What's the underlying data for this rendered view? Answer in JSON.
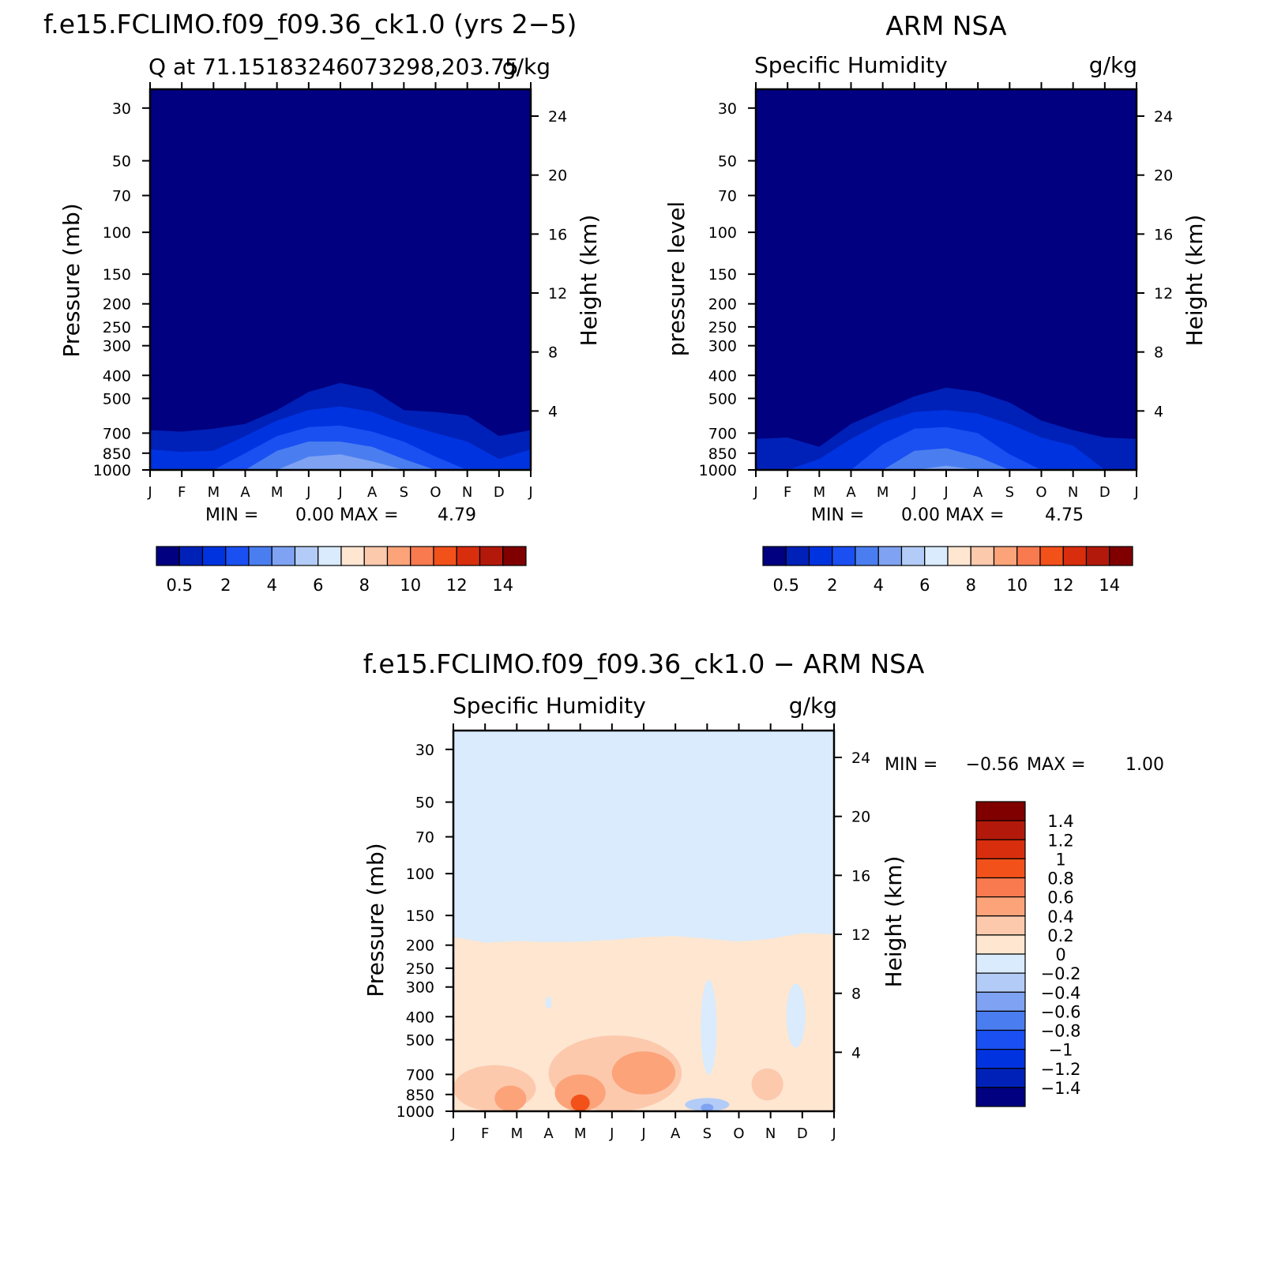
{
  "colors": {
    "abs_levels": [
      "#000080",
      "#0021b8",
      "#0033e0",
      "#1a4ff2",
      "#4a7ef0",
      "#7fa3f2",
      "#b3ccf7",
      "#d9ebfc",
      "#fee6d1",
      "#fcc9ad",
      "#fca37a",
      "#fa7a4f",
      "#f2511a",
      "#d92e0d",
      "#b2190b",
      "#800000"
    ],
    "diff_levels": [
      "#000080",
      "#0021b8",
      "#0033e0",
      "#1a4ff2",
      "#4a7ef0",
      "#7fa3f2",
      "#b3ccf7",
      "#d9ebfc",
      "#fee6d1",
      "#fcc9ad",
      "#fca37a",
      "#fa7a4f",
      "#f2511a",
      "#d92e0d",
      "#b2190b",
      "#800000"
    ]
  },
  "chart_data": [
    {
      "id": "model",
      "type": "heatmap",
      "title": "f.e15.FCLIMO.f09_f09.36_ck1.0 (yrs 2−5)",
      "subtitle_left": "Q at 71.15183246073298,203.75",
      "subtitle_right": "g/kg",
      "ylabel": "Pressure (mb)",
      "ylabel_right": "Height (km)",
      "months": [
        "J",
        "F",
        "M",
        "A",
        "M",
        "J",
        "J",
        "A",
        "S",
        "O",
        "N",
        "D",
        "J"
      ],
      "pressure_ticks": [
        30,
        50,
        70,
        100,
        150,
        200,
        250,
        300,
        400,
        500,
        700,
        850,
        1000
      ],
      "height_ticks": [
        4,
        8,
        12,
        16,
        20,
        24
      ],
      "ylim": [
        1000,
        25
      ],
      "min_label": "MIN =",
      "min_value": "0.00",
      "max_label": "MAX =",
      "max_value": "4.79",
      "contour_levels": [
        0.5,
        1,
        2,
        3,
        4,
        5,
        6,
        7,
        8,
        9,
        10,
        11,
        12,
        13,
        14
      ],
      "contour_label_values": [
        "0.5",
        "2",
        "4",
        "6",
        "8",
        "10",
        "12",
        "14"
      ],
      "levels": [
        {
          "level": 0.5,
          "pressure_top_by_month": [
            680,
            690,
            670,
            640,
            560,
            470,
            430,
            460,
            560,
            570,
            590,
            720,
            680
          ]
        },
        {
          "level": 1,
          "pressure_top_by_month": [
            820,
            840,
            830,
            720,
            620,
            560,
            540,
            570,
            640,
            700,
            760,
            900,
            820
          ]
        },
        {
          "level": 2,
          "pressure_top_by_month": [
            1000,
            1000,
            1000,
            850,
            720,
            660,
            650,
            690,
            760,
            880,
            1000,
            1000,
            1000
          ]
        },
        {
          "level": 3,
          "pressure_top_by_month": [
            1000,
            1000,
            1000,
            1000,
            830,
            760,
            760,
            800,
            900,
            1000,
            1000,
            1000,
            1000
          ]
        },
        {
          "level": 4,
          "pressure_top_by_month": [
            1000,
            1000,
            1000,
            1000,
            1000,
            880,
            860,
            920,
            1000,
            1000,
            1000,
            1000,
            1000
          ]
        }
      ]
    },
    {
      "id": "obs",
      "type": "heatmap",
      "title": "ARM NSA",
      "subtitle_left": "Specific Humidity",
      "subtitle_right": "g/kg",
      "ylabel": "pressure level",
      "ylabel_right": "Height (km)",
      "months": [
        "J",
        "F",
        "M",
        "A",
        "M",
        "J",
        "J",
        "A",
        "S",
        "O",
        "N",
        "D",
        "J"
      ],
      "pressure_ticks": [
        30,
        50,
        70,
        100,
        150,
        200,
        250,
        300,
        400,
        500,
        700,
        850,
        1000
      ],
      "height_ticks": [
        4,
        8,
        12,
        16,
        20,
        24
      ],
      "ylim": [
        1000,
        25
      ],
      "min_label": "MIN =",
      "min_value": "0.00",
      "max_label": "MAX =",
      "max_value": "4.75",
      "contour_levels": [
        0.5,
        1,
        2,
        3,
        4,
        5,
        6,
        7,
        8,
        9,
        10,
        11,
        12,
        13,
        14
      ],
      "contour_label_values": [
        "0.5",
        "2",
        "4",
        "6",
        "8",
        "10",
        "12",
        "14"
      ],
      "levels": [
        {
          "level": 0.5,
          "pressure_top_by_month": [
            740,
            730,
            800,
            640,
            560,
            490,
            450,
            470,
            520,
            620,
            680,
            730,
            740
          ]
        },
        {
          "level": 1,
          "pressure_top_by_month": [
            1000,
            1000,
            900,
            740,
            630,
            570,
            560,
            580,
            640,
            730,
            790,
            1000,
            1000
          ]
        },
        {
          "level": 2,
          "pressure_top_by_month": [
            1000,
            1000,
            1000,
            1000,
            780,
            670,
            660,
            700,
            860,
            1000,
            1000,
            1000,
            1000
          ]
        },
        {
          "level": 3,
          "pressure_top_by_month": [
            1000,
            1000,
            1000,
            1000,
            1000,
            830,
            810,
            880,
            1000,
            1000,
            1000,
            1000,
            1000
          ]
        },
        {
          "level": 4,
          "pressure_top_by_month": [
            1000,
            1000,
            1000,
            1000,
            1000,
            1000,
            960,
            1000,
            1000,
            1000,
            1000,
            1000,
            1000
          ]
        }
      ]
    },
    {
      "id": "diff",
      "type": "heatmap",
      "title": "f.e15.FCLIMO.f09_f09.36_ck1.0 − ARM NSA",
      "subtitle_left": "Specific Humidity",
      "subtitle_right": "g/kg",
      "ylabel": "Pressure (mb)",
      "ylabel_right": "Height (km)",
      "months": [
        "J",
        "F",
        "M",
        "A",
        "M",
        "J",
        "J",
        "A",
        "S",
        "O",
        "N",
        "D",
        "J"
      ],
      "pressure_ticks": [
        30,
        50,
        70,
        100,
        150,
        200,
        250,
        300,
        400,
        500,
        700,
        850,
        1000
      ],
      "height_ticks": [
        4,
        8,
        12,
        16,
        20,
        24
      ],
      "ylim": [
        1000,
        25
      ],
      "min_label": "MIN =",
      "min_value": "−0.56",
      "max_label": "MAX =",
      "max_value": "1.00",
      "contour_levels": [
        -1.4,
        -1.2,
        -1,
        -0.8,
        -0.6,
        -0.4,
        -0.2,
        0,
        0.2,
        0.4,
        0.6,
        0.8,
        1,
        1.2,
        1.4
      ],
      "contour_label_values": [
        "1.4",
        "1.2",
        "1",
        "0.8",
        "0.6",
        "0.4",
        "0.2",
        "0",
        "−0.2",
        "−0.4",
        "−0.6",
        "−0.8",
        "−1",
        "−1.2",
        "−1.4"
      ],
      "positive_zero_boundary_pressure_by_month": [
        185,
        195,
        192,
        194,
        193,
        190,
        185,
        183,
        188,
        193,
        188,
        178,
        180
      ],
      "regions": [
        {
          "value": -0.1,
          "shape": "patch",
          "month_range": [
            7.8,
            8.3
          ],
          "pressure_range": [
            280,
            700
          ]
        },
        {
          "value": -0.1,
          "shape": "patch",
          "month_range": [
            10.5,
            11.1
          ],
          "pressure_range": [
            290,
            540
          ]
        },
        {
          "value": -0.1,
          "shape": "patch",
          "month_range": [
            2.9,
            3.1
          ],
          "pressure_range": [
            330,
            370
          ]
        },
        {
          "value": 0.3,
          "shape": "patch",
          "month_range": [
            3.0,
            7.2
          ],
          "pressure_range": [
            480,
            1000
          ]
        },
        {
          "value": 0.3,
          "shape": "patch",
          "month_range": [
            0.0,
            2.6
          ],
          "pressure_range": [
            640,
            1000
          ]
        },
        {
          "value": 0.3,
          "shape": "patch",
          "month_range": [
            9.4,
            10.4
          ],
          "pressure_range": [
            660,
            900
          ]
        },
        {
          "value": 0.5,
          "shape": "patch",
          "month_range": [
            5.0,
            7.0
          ],
          "pressure_range": [
            560,
            850
          ]
        },
        {
          "value": 0.5,
          "shape": "patch",
          "month_range": [
            3.2,
            4.8
          ],
          "pressure_range": [
            700,
            1000
          ]
        },
        {
          "value": 0.5,
          "shape": "patch",
          "month_range": [
            1.3,
            2.3
          ],
          "pressure_range": [
            780,
            1000
          ]
        },
        {
          "value": 0.9,
          "shape": "patch",
          "month_range": [
            3.7,
            4.3
          ],
          "pressure_range": [
            850,
            1000
          ]
        },
        {
          "value": -0.3,
          "shape": "patch",
          "month_range": [
            7.3,
            8.7
          ],
          "pressure_range": [
            880,
            1000
          ]
        },
        {
          "value": -0.5,
          "shape": "patch",
          "month_range": [
            7.8,
            8.2
          ],
          "pressure_range": [
            930,
            1000
          ]
        }
      ]
    }
  ]
}
